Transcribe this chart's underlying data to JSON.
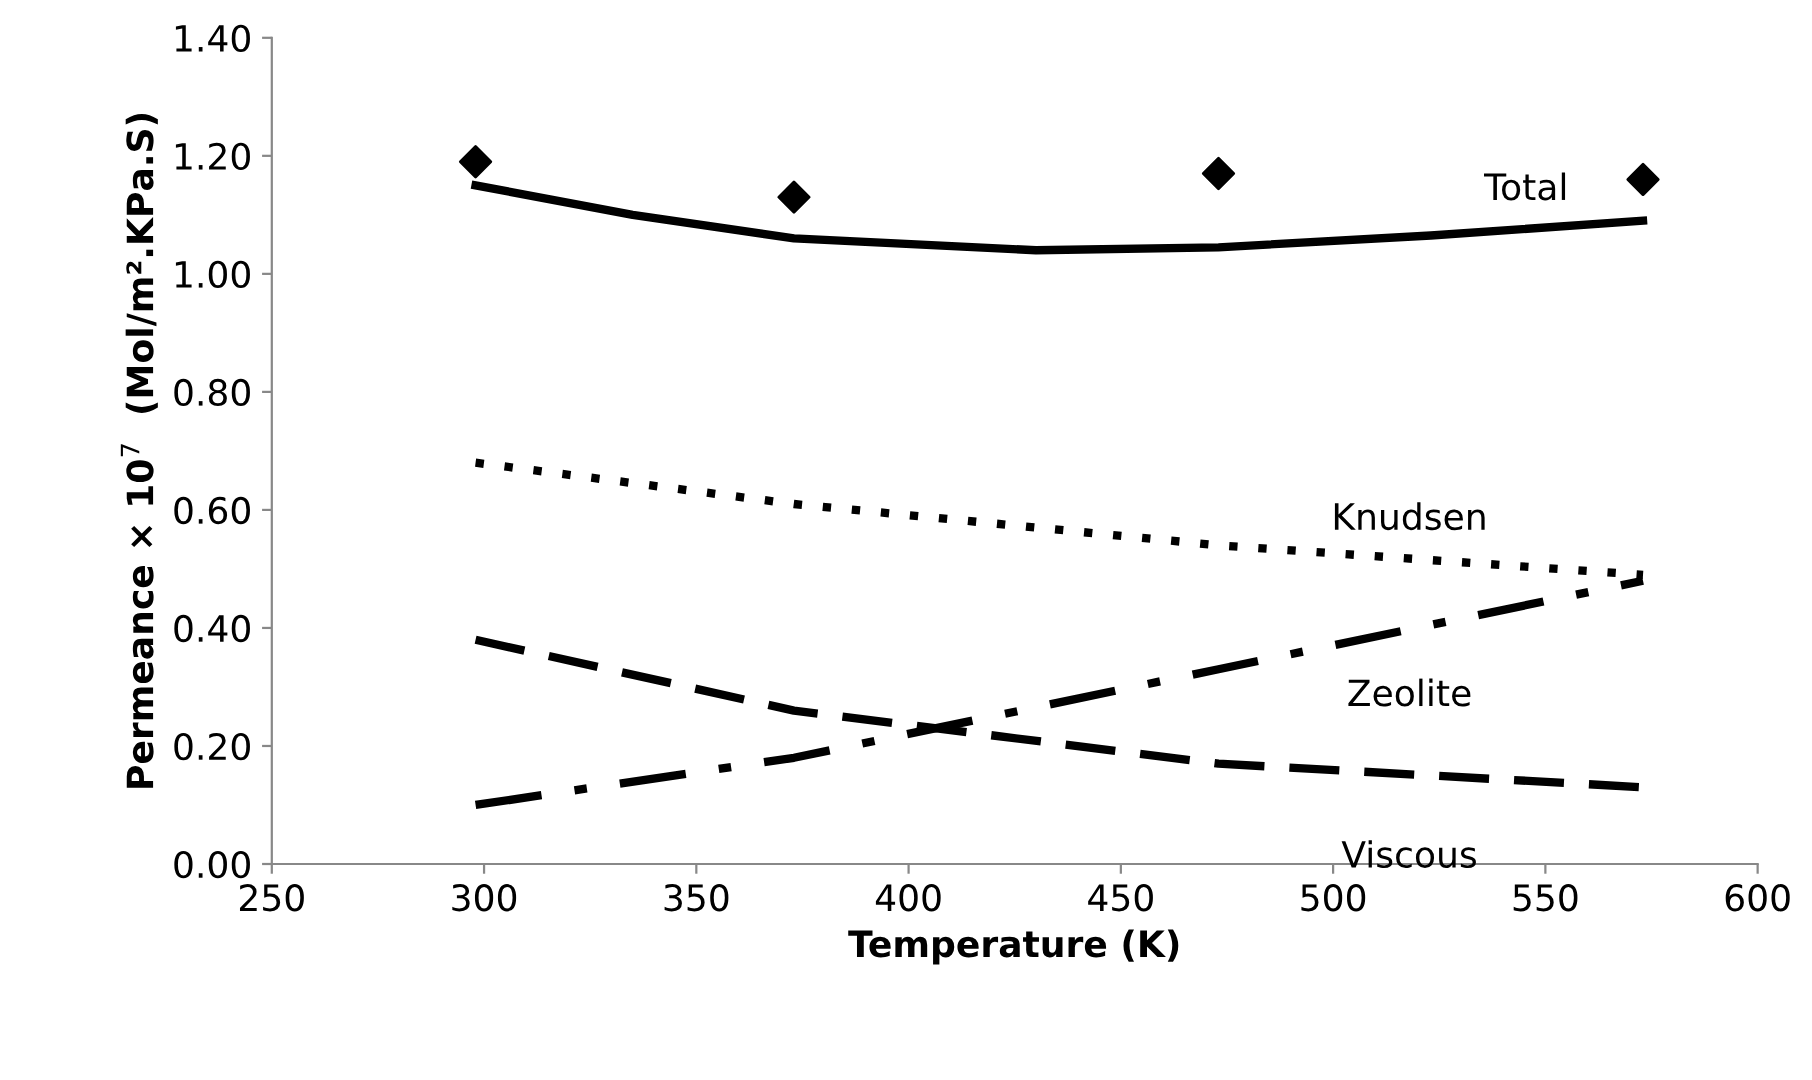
{
  "chart_data": {
    "type": "line",
    "xlabel": "Temperature (K)",
    "ylabel": "Permeance × 10$^{7}$  (Mol/m².KPa.S)",
    "xlim": [
      250,
      600
    ],
    "xticks": [
      250,
      300,
      350,
      400,
      450,
      500,
      550,
      600
    ],
    "ylim": [
      0,
      1.4
    ],
    "yticks": [
      {
        "value": 0,
        "label": "0.00"
      },
      {
        "value": 0.2,
        "label": "0.20"
      },
      {
        "value": 0.4,
        "label": "0.40"
      },
      {
        "value": 0.6,
        "label": "0.60"
      },
      {
        "value": 0.8,
        "label": "0.80"
      },
      {
        "value": 1.0,
        "label": "1.00"
      },
      {
        "value": 1.2,
        "label": "1.20"
      },
      {
        "value": 1.4,
        "label": "1.40"
      }
    ],
    "grid": false,
    "legend": false,
    "series": [
      {
        "type": "scatter",
        "marker": "diamond",
        "color": "#000000",
        "x": [
          298,
          373,
          473,
          573
        ],
        "values": [
          1.19,
          1.13,
          1.17,
          1.16
        ]
      },
      {
        "name": "Total",
        "line_style": "solid",
        "color": "#000000",
        "x": [
          298,
          335,
          373,
          430,
          473,
          523,
          573
        ],
        "values": [
          1.15,
          1.1,
          1.06,
          1.04,
          1.045,
          1.065,
          1.09
        ]
      },
      {
        "name": "Knudsen",
        "line_style": "dotted",
        "color": "#000000",
        "x": [
          298,
          373,
          473,
          573
        ],
        "values": [
          0.68,
          0.61,
          0.54,
          0.49
        ]
      },
      {
        "name": "Zeolite",
        "line_style": "dashdot",
        "color": "#000000",
        "x": [
          298,
          373,
          473,
          573
        ],
        "values": [
          0.1,
          0.18,
          0.33,
          0.48
        ]
      },
      {
        "name": "Viscous",
        "line_style": "dashed",
        "color": "#000000",
        "x": [
          298,
          373,
          473,
          573
        ],
        "values": [
          0.38,
          0.26,
          0.17,
          0.13
        ]
      }
    ]
  }
}
